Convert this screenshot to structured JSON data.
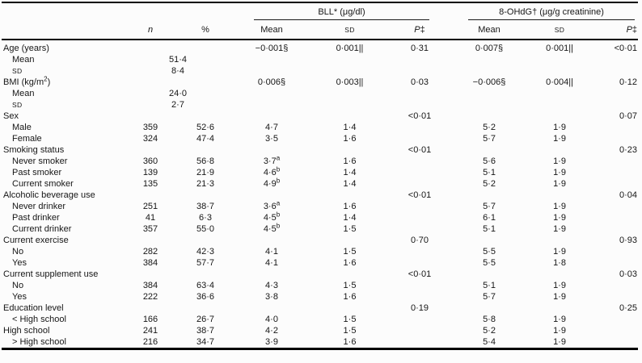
{
  "page": {
    "background": "#fcfcfc",
    "text_color": "#161616",
    "rule_color": "#000000"
  },
  "table": {
    "group_headers": [
      {
        "label": "BLL* (μg/dl)"
      },
      {
        "label": "8-OHdG† (μg/g creatinine)"
      }
    ],
    "column_headers": {
      "n": [
        {
          "i": "n"
        }
      ],
      "percent": "%",
      "bll_mean": "Mean",
      "bll_sd": [
        {
          "sc": "SD"
        }
      ],
      "bll_p": [
        {
          "i": "P"
        },
        "‡"
      ],
      "ohdg_mean": "Mean",
      "ohdg_sd": [
        {
          "sc": "SD"
        }
      ],
      "ohdg_p": [
        {
          "i": "P"
        },
        "‡"
      ]
    },
    "rows": [
      {
        "label": "Age (years)",
        "indent": 0,
        "bll_mean": "−0·001§",
        "bll_sd": "0·001||",
        "bll_p": "0·31",
        "o_mean": "0·007§",
        "o_sd": "0·001||",
        "o_p": "<0·01"
      },
      {
        "label": "Mean",
        "indent": 1,
        "span2": "51·4"
      },
      {
        "label": [
          {
            "sc": "SD"
          }
        ],
        "indent": 1,
        "span2": "8·4"
      },
      {
        "label": [
          "BMI (kg/m",
          {
            "sup": "2"
          },
          ")"
        ],
        "indent": 0,
        "bll_mean": "0·006§",
        "bll_sd": "0·003||",
        "bll_p": "0·03",
        "o_mean": "−0·006§",
        "o_sd": "0·004||",
        "o_p": "0·12"
      },
      {
        "label": "Mean",
        "indent": 1,
        "span2": "24·0"
      },
      {
        "label": [
          {
            "sc": "SD"
          }
        ],
        "indent": 1,
        "span2": "2·7"
      },
      {
        "label": "Sex",
        "indent": 0,
        "bll_p": "<0·01",
        "o_p": "0·07"
      },
      {
        "label": "Male",
        "indent": 1,
        "n": "359",
        "pct": "52·6",
        "bll_mean": "4·7",
        "bll_sd": "1·4",
        "o_mean": "5·2",
        "o_sd": "1·9"
      },
      {
        "label": "Female",
        "indent": 1,
        "n": "324",
        "pct": "47·4",
        "bll_mean": "3·5",
        "bll_sd": "1·6",
        "o_mean": "5·7",
        "o_sd": "1·9"
      },
      {
        "label": "Smoking status",
        "indent": 0,
        "bll_p": "<0·01",
        "o_p": "0·23"
      },
      {
        "label": "Never smoker",
        "indent": 1,
        "n": "360",
        "pct": "56·8",
        "bll_mean": [
          "3·7",
          {
            "sup": "a"
          }
        ],
        "bll_sd": "1·6",
        "o_mean": "5·6",
        "o_sd": "1·9"
      },
      {
        "label": "Past smoker",
        "indent": 1,
        "n": "139",
        "pct": "21·9",
        "bll_mean": [
          "4·6",
          {
            "sup": "b"
          }
        ],
        "bll_sd": "1·4",
        "o_mean": "5·1",
        "o_sd": "1·9"
      },
      {
        "label": "Current smoker",
        "indent": 1,
        "n": "135",
        "pct": "21·3",
        "bll_mean": [
          "4·9",
          {
            "sup": "b"
          }
        ],
        "bll_sd": "1·4",
        "o_mean": "5·2",
        "o_sd": "1·9"
      },
      {
        "label": "Alcoholic beverage use",
        "indent": 0,
        "bll_p": "<0·01",
        "o_p": "0·04"
      },
      {
        "label": "Never drinker",
        "indent": 1,
        "n": "251",
        "pct": "38·7",
        "bll_mean": [
          "3·6",
          {
            "sup": "a"
          }
        ],
        "bll_sd": "1·6",
        "o_mean": "5·7",
        "o_sd": "1·9"
      },
      {
        "label": "Past drinker",
        "indent": 1,
        "n": "41",
        "pct": "6·3",
        "bll_mean": [
          "4·5",
          {
            "sup": "b"
          }
        ],
        "bll_sd": "1·4",
        "o_mean": "6·1",
        "o_sd": "1·9"
      },
      {
        "label": "Current drinker",
        "indent": 1,
        "n": "357",
        "pct": "55·0",
        "bll_mean": [
          "4·5",
          {
            "sup": "b"
          }
        ],
        "bll_sd": "1·5",
        "o_mean": "5·1",
        "o_sd": "1·9"
      },
      {
        "label": "Current exercise",
        "indent": 0,
        "bll_p": "0·70",
        "o_p": "0·93"
      },
      {
        "label": "No",
        "indent": 1,
        "n": "282",
        "pct": "42·3",
        "bll_mean": "4·1",
        "bll_sd": "1·5",
        "o_mean": "5·5",
        "o_sd": "1·9"
      },
      {
        "label": "Yes",
        "indent": 1,
        "n": "384",
        "pct": "57·7",
        "bll_mean": "4·1",
        "bll_sd": "1·6",
        "o_mean": "5·5",
        "o_sd": "1·8"
      },
      {
        "label": "Current supplement use",
        "indent": 0,
        "bll_p": "<0·01",
        "o_p": "0·03"
      },
      {
        "label": "No",
        "indent": 1,
        "n": "384",
        "pct": "63·4",
        "bll_mean": "4·3",
        "bll_sd": "1·5",
        "o_mean": "5·1",
        "o_sd": "1·9"
      },
      {
        "label": "Yes",
        "indent": 1,
        "n": "222",
        "pct": "36·6",
        "bll_mean": "3·8",
        "bll_sd": "1·6",
        "o_mean": "5·7",
        "o_sd": "1·9"
      },
      {
        "label": "Education level",
        "indent": 0,
        "bll_p": "0·19",
        "o_p": "0·25"
      },
      {
        "label": "< High school",
        "indent": 1,
        "n": "166",
        "pct": "26·7",
        "bll_mean": "4·0",
        "bll_sd": "1·5",
        "o_mean": "5·8",
        "o_sd": "1·9"
      },
      {
        "label": "High school",
        "indent": 0,
        "n": "241",
        "pct": "38·7",
        "bll_mean": "4·2",
        "bll_sd": "1·5",
        "o_mean": "5·2",
        "o_sd": "1·9"
      },
      {
        "label": "> High school",
        "indent": 1,
        "n": "216",
        "pct": "34·7",
        "bll_mean": "3·9",
        "bll_sd": "1·6",
        "o_mean": "5·4",
        "o_sd": "1·9"
      }
    ]
  }
}
